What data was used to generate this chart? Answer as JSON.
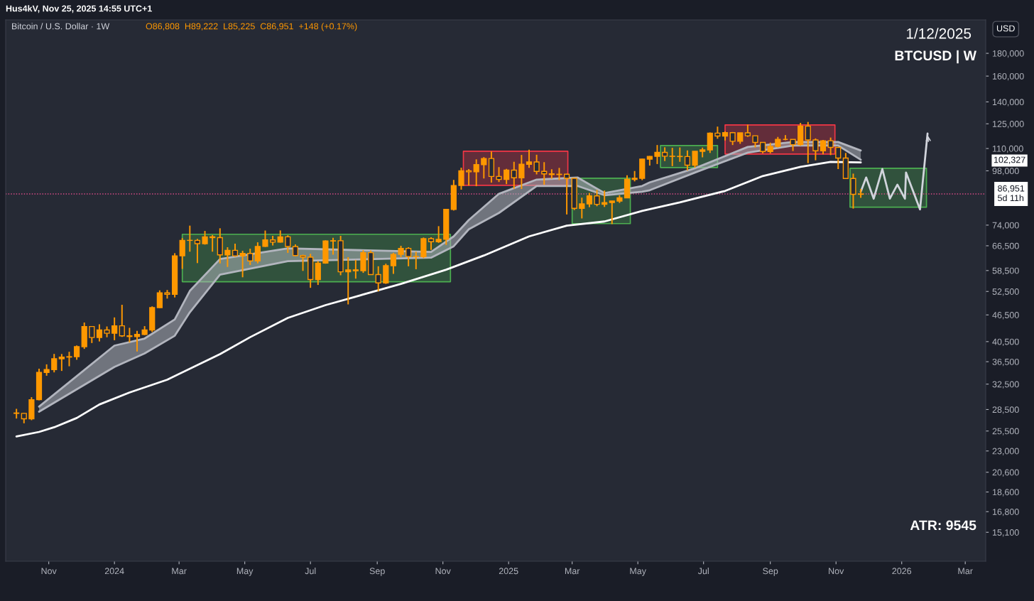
{
  "chart_data": {
    "type": "candlestick",
    "title": "Bitcoin / U.S. Dollar · 1W",
    "subtitle": "O86,808  H89,222  L85,225  C86,951  +148 (+0.17%)",
    "annotations": [
      "Hus4kV, Nov 25, 2025 14:55 UTC+1",
      "1/12/2025",
      "BTCUSD | W",
      "ATR: 9545",
      "USD",
      "102,327"
    ],
    "log": true,
    "xlim": [
      "2023-09-22",
      "2026-03-20"
    ],
    "xticks": [
      {
        "value": "2023-11-01",
        "label": "Nov"
      },
      {
        "value": "2024-01-01",
        "label": "2024"
      },
      {
        "value": "2024-03-01",
        "label": "Mar"
      },
      {
        "value": "2024-05-01",
        "label": "May"
      },
      {
        "value": "2024-07-01",
        "label": "Jul"
      },
      {
        "value": "2024-09-01",
        "label": "Sep"
      },
      {
        "value": "2024-11-01",
        "label": "Nov"
      },
      {
        "value": "2025-01-01",
        "label": "2025"
      },
      {
        "value": "2025-03-01",
        "label": "Mar"
      },
      {
        "value": "2025-05-01",
        "label": "May"
      },
      {
        "value": "2025-07-01",
        "label": "Jul"
      },
      {
        "value": "2025-09-01",
        "label": "Sep"
      },
      {
        "value": "2025-11-01",
        "label": "Nov"
      },
      {
        "value": "2026-01-01",
        "label": "2026"
      },
      {
        "value": "2026-03-01",
        "label": "Mar"
      }
    ],
    "ylim": [
      13000,
      214000
    ],
    "yticks": [
      {
        "value": 15100,
        "label": "15,100"
      },
      {
        "value": 16800,
        "label": "16,800"
      },
      {
        "value": 18600,
        "label": "18,600"
      },
      {
        "value": 20600,
        "label": "20,600"
      },
      {
        "value": 23000,
        "label": "23,000"
      },
      {
        "value": 25500,
        "label": "25,500"
      },
      {
        "value": 28500,
        "label": "28,500"
      },
      {
        "value": 32500,
        "label": "32,500"
      },
      {
        "value": 36500,
        "label": "36,500"
      },
      {
        "value": 40500,
        "label": "40,500"
      },
      {
        "value": 46500,
        "label": "46,500"
      },
      {
        "value": 52500,
        "label": "52,500"
      },
      {
        "value": 58500,
        "label": "58,500"
      },
      {
        "value": 66500,
        "label": "66,500"
      },
      {
        "value": 74000,
        "label": "74,000"
      },
      {
        "value": 98000,
        "label": "98,000"
      },
      {
        "value": 110000,
        "label": "110,000"
      },
      {
        "value": 125000,
        "label": "125,000"
      },
      {
        "value": 140000,
        "label": "140,000"
      },
      {
        "value": 160000,
        "label": "160,000"
      },
      {
        "value": 180000,
        "label": "180,000"
      }
    ],
    "ref_lines": [
      {
        "axis": "y",
        "value": 86951,
        "label": "86,951\n5d 11h",
        "color": "#e04c8a",
        "line_style": "dotted"
      }
    ],
    "series": [
      {
        "type": "line",
        "color": "#b2b5be",
        "x": [
          "2023-10-23",
          "2024-01-01",
          "2024-01-29",
          "2024-02-26",
          "2024-03-11",
          "2024-04-08",
          "2024-06-10",
          "2024-10-21",
          "2024-11-11",
          "2024-11-25",
          "2024-12-23",
          "2025-01-27",
          "2025-03-06",
          "2025-03-31",
          "2025-05-05",
          "2025-05-12",
          "2025-06-23",
          "2025-08-11",
          "2025-09-22",
          "2025-11-03",
          "2025-11-24"
        ],
        "values": [
          28930,
          39670,
          41150,
          45440,
          52640,
          62090,
          65600,
          64410,
          69810,
          75960,
          87010,
          93650,
          94690,
          87350,
          90620,
          92290,
          99310,
          110870,
          113770,
          113770,
          108870
        ]
      },
      {
        "type": "line",
        "color": "#b2b5be",
        "x": [
          "2023-10-23",
          "2024-01-01",
          "2024-01-29",
          "2024-02-26",
          "2024-03-11",
          "2024-04-08",
          "2024-06-10",
          "2024-10-21",
          "2024-11-11",
          "2024-11-25",
          "2024-12-23",
          "2025-01-27",
          "2025-03-06",
          "2025-03-31",
          "2025-05-05",
          "2025-05-12",
          "2025-06-23",
          "2025-08-11",
          "2025-09-22",
          "2025-11-03",
          "2025-11-24"
        ],
        "values": [
          28190,
          35530,
          38100,
          41750,
          47140,
          57280,
          61400,
          62540,
          66330,
          72410,
          78810,
          90620,
          90620,
          86380,
          87990,
          88640,
          97140,
          107670,
          111700,
          111700,
          103780
        ]
      },
      {
        "type": "line",
        "color": "#ffffff",
        "x": [
          "2023-10-02",
          "2023-10-23",
          "2023-11-06",
          "2023-11-27",
          "2023-12-18",
          "2024-01-15",
          "2024-02-19",
          "2024-04-08",
          "2024-05-06",
          "2024-06-10",
          "2024-07-15",
          "2024-08-12",
          "2024-09-23",
          "2024-11-04",
          "2024-12-09",
          "2025-01-20",
          "2025-02-24",
          "2025-03-31",
          "2025-05-05",
          "2025-06-09",
          "2025-07-21",
          "2025-08-25",
          "2025-09-29",
          "2025-10-27",
          "2025-11-24"
        ],
        "values": [
          24790,
          25380,
          26000,
          27280,
          29250,
          31130,
          33250,
          37960,
          41440,
          45780,
          48910,
          51110,
          54600,
          58750,
          63230,
          69810,
          73780,
          75410,
          79670,
          83260,
          88310,
          95390,
          100050,
          102660,
          102330
        ]
      },
      {
        "type": "area",
        "color": "#4caf50",
        "x": [
          "2024-03-04",
          "2024-03-04",
          "2024-11-08",
          "2024-11-08",
          "2024-03-04"
        ],
        "values": [
          55200,
          70590,
          70590,
          55200,
          55200
        ]
      },
      {
        "type": "area",
        "color": "#f23645",
        "x": [
          "2024-11-20",
          "2024-11-20",
          "2025-02-25",
          "2025-02-25",
          "2024-11-20"
        ],
        "values": [
          90930,
          108460,
          108460,
          90930,
          90930
        ]
      },
      {
        "type": "area",
        "color": "#4caf50",
        "x": [
          "2025-03-01",
          "2025-03-01",
          "2025-04-24",
          "2025-04-24",
          "2025-03-01"
        ],
        "values": [
          74580,
          94340,
          94340,
          74580,
          74580
        ]
      },
      {
        "type": "area",
        "color": "#4caf50",
        "x": [
          "2025-05-22",
          "2025-05-22",
          "2025-07-14",
          "2025-07-14",
          "2025-05-22"
        ],
        "values": [
          99680,
          111700,
          111700,
          99680,
          99680
        ]
      },
      {
        "type": "area",
        "color": "#f23645",
        "x": [
          "2025-07-21",
          "2025-07-21",
          "2025-10-31",
          "2025-10-31",
          "2025-07-21"
        ],
        "values": [
          106880,
          124290,
          124290,
          106880,
          106880
        ]
      },
      {
        "type": "area",
        "color": "#4caf50",
        "x": [
          "2025-11-14",
          "2025-11-14",
          "2026-01-24",
          "2026-01-24",
          "2025-11-14"
        ],
        "values": [
          81180,
          99310,
          99310,
          81180,
          81180
        ]
      },
      {
        "type": "line",
        "color": "#d1d4dc",
        "x": [
          "2025-11-24",
          "2025-11-29",
          "2025-12-06",
          "2025-12-14",
          "2025-12-21",
          "2025-12-28",
          "2026-01-04",
          "2026-01-05",
          "2026-01-18",
          "2026-01-25"
        ],
        "values": [
          87990,
          94690,
          84840,
          98950,
          84840,
          91260,
          84840,
          97140,
          80260,
          118900
        ]
      },
      {
        "color": "#ff9800",
        "x": [
          "2023-10-02",
          "2023-10-09",
          "2023-10-16",
          "2023-10-23",
          "2023-10-30",
          "2023-11-06",
          "2023-11-13",
          "2023-11-20",
          "2023-11-27",
          "2023-12-04",
          "2023-12-11",
          "2023-12-18",
          "2023-12-25",
          "2024-01-01",
          "2024-01-08",
          "2024-01-15",
          "2024-01-22",
          "2024-01-29",
          "2024-02-05",
          "2024-02-12",
          "2024-02-19",
          "2024-02-26",
          "2024-03-04",
          "2024-03-11",
          "2024-03-18",
          "2024-03-25",
          "2024-04-01",
          "2024-04-08",
          "2024-04-15",
          "2024-04-22",
          "2024-04-29",
          "2024-05-06",
          "2024-05-13",
          "2024-05-20",
          "2024-05-27",
          "2024-06-03",
          "2024-06-10",
          "2024-06-17",
          "2024-06-24",
          "2024-07-01",
          "2024-07-08",
          "2024-07-15",
          "2024-07-22",
          "2024-07-29",
          "2024-08-05",
          "2024-08-12",
          "2024-08-19",
          "2024-08-26",
          "2024-09-02",
          "2024-09-09",
          "2024-09-16",
          "2024-09-23",
          "2024-09-30",
          "2024-10-07",
          "2024-10-14",
          "2024-10-21",
          "2024-10-28",
          "2024-11-04",
          "2024-11-11",
          "2024-11-18",
          "2024-11-25",
          "2024-12-02",
          "2024-12-09",
          "2024-12-16",
          "2024-12-23",
          "2024-12-30",
          "2025-01-06",
          "2025-01-13",
          "2025-01-20",
          "2025-01-27",
          "2025-02-03",
          "2025-02-10",
          "2025-02-17",
          "2025-02-24",
          "2025-03-03",
          "2025-03-10",
          "2025-03-17",
          "2025-03-24",
          "2025-03-31",
          "2025-04-07",
          "2025-04-14",
          "2025-04-21",
          "2025-04-28",
          "2025-05-05",
          "2025-05-12",
          "2025-05-19",
          "2025-05-26",
          "2025-06-02",
          "2025-06-09",
          "2025-06-16",
          "2025-06-23",
          "2025-06-30",
          "2025-07-07",
          "2025-07-14",
          "2025-07-21",
          "2025-07-28",
          "2025-08-04",
          "2025-08-11",
          "2025-08-18",
          "2025-08-25",
          "2025-09-01",
          "2025-09-08",
          "2025-09-15",
          "2025-09-22",
          "2025-09-29",
          "2025-10-06",
          "2025-10-13",
          "2025-10-20",
          "2025-10-27",
          "2025-11-03",
          "2025-11-10",
          "2025-11-17",
          "2025-11-24"
        ],
        "ohlc": [
          [
            27990,
            28600,
            27200,
            27940
          ],
          [
            27940,
            27990,
            26540,
            27160
          ],
          [
            27160,
            30380,
            26970,
            29990
          ],
          [
            29990,
            35200,
            29880,
            34530
          ],
          [
            34530,
            36000,
            33940,
            35040
          ],
          [
            35040,
            38000,
            34540,
            37060
          ],
          [
            37060,
            37980,
            34800,
            37380
          ],
          [
            37380,
            38420,
            35650,
            37460
          ],
          [
            37460,
            39700,
            36870,
            39460
          ],
          [
            39460,
            44700,
            39000,
            43780
          ],
          [
            43780,
            43800,
            40200,
            41360
          ],
          [
            41360,
            44300,
            40530,
            43000
          ],
          [
            43000,
            43800,
            41420,
            42280
          ],
          [
            42280,
            45900,
            40800,
            43950
          ],
          [
            43950,
            49000,
            41500,
            41730
          ],
          [
            41730,
            43500,
            40300,
            41580
          ],
          [
            41580,
            42800,
            38500,
            42030
          ],
          [
            42030,
            43880,
            41880,
            43000
          ],
          [
            43000,
            48600,
            42560,
            48300
          ],
          [
            48300,
            52800,
            48200,
            52130
          ],
          [
            52130,
            52900,
            50600,
            51730
          ],
          [
            51730,
            64000,
            50900,
            63130
          ],
          [
            63130,
            69200,
            59000,
            68380
          ],
          [
            68380,
            73800,
            64500,
            68390
          ],
          [
            68390,
            68900,
            60800,
            67210
          ],
          [
            67210,
            71800,
            66900,
            69650
          ],
          [
            69650,
            70300,
            64500,
            69360
          ],
          [
            69360,
            72800,
            60700,
            63450
          ],
          [
            63450,
            66000,
            59600,
            64940
          ],
          [
            64940,
            67200,
            62800,
            63120
          ],
          [
            63120,
            64800,
            56500,
            63900
          ],
          [
            63900,
            65500,
            60200,
            61480
          ],
          [
            61480,
            67700,
            60700,
            66270
          ],
          [
            66270,
            71950,
            66100,
            68520
          ],
          [
            68520,
            70000,
            66600,
            67760
          ],
          [
            67760,
            72000,
            67600,
            69640
          ],
          [
            69640,
            70200,
            64100,
            66230
          ],
          [
            66230,
            66970,
            63000,
            63210
          ],
          [
            63210,
            63500,
            58400,
            62680
          ],
          [
            62680,
            63800,
            53500,
            55850
          ],
          [
            55850,
            61400,
            54300,
            60800
          ],
          [
            60800,
            68400,
            60600,
            68160
          ],
          [
            68160,
            69300,
            63500,
            68250
          ],
          [
            68250,
            70000,
            57100,
            58120
          ],
          [
            58120,
            62700,
            49100,
            58710
          ],
          [
            58710,
            61800,
            56100,
            58430
          ],
          [
            58430,
            65000,
            57800,
            64180
          ],
          [
            64180,
            64900,
            57200,
            57290
          ],
          [
            57290,
            59800,
            52500,
            54870
          ],
          [
            54870,
            60600,
            54600,
            59990
          ],
          [
            59990,
            64100,
            57500,
            63600
          ],
          [
            63600,
            66500,
            62700,
            65620
          ],
          [
            65620,
            66000,
            59800,
            62880
          ],
          [
            62880,
            64500,
            58900,
            62850
          ],
          [
            62850,
            69400,
            62400,
            68990
          ],
          [
            68990,
            69500,
            65100,
            67920
          ],
          [
            67920,
            73600,
            67500,
            68770
          ],
          [
            68770,
            80400,
            66800,
            80280
          ],
          [
            80280,
            93500,
            79800,
            90840
          ],
          [
            90840,
            99600,
            88900,
            98050
          ],
          [
            98050,
            98900,
            90800,
            97490
          ],
          [
            97490,
            104000,
            90500,
            101170
          ],
          [
            101170,
            105200,
            94200,
            104470
          ],
          [
            104470,
            108300,
            92200,
            95200
          ],
          [
            95200,
            99900,
            92500,
            93700
          ],
          [
            93700,
            99000,
            91500,
            98340
          ],
          [
            98340,
            102700,
            89300,
            94520
          ],
          [
            94520,
            106400,
            89200,
            101370
          ],
          [
            101370,
            109300,
            99500,
            102620
          ],
          [
            102620,
            106500,
            96200,
            97700
          ],
          [
            97700,
            102500,
            91200,
            96490
          ],
          [
            96490,
            98800,
            94100,
            96130
          ],
          [
            96130,
            99500,
            93400,
            96280
          ],
          [
            96280,
            96500,
            78200,
            94270
          ],
          [
            94270,
            94400,
            80000,
            80700
          ],
          [
            80700,
            85300,
            76600,
            82600
          ],
          [
            82600,
            87400,
            81200,
            86080
          ],
          [
            86080,
            88800,
            81600,
            82400
          ],
          [
            82400,
            88500,
            81300,
            83150
          ],
          [
            83150,
            83900,
            74400,
            83800
          ],
          [
            83800,
            86400,
            83000,
            85200
          ],
          [
            85200,
            95800,
            85200,
            93750
          ],
          [
            93750,
            97900,
            92800,
            94300
          ],
          [
            94300,
            104300,
            93400,
            104100
          ],
          [
            104100,
            105800,
            100700,
            105600
          ],
          [
            105600,
            112000,
            101500,
            107800
          ],
          [
            107800,
            110700,
            103100,
            105700
          ],
          [
            105700,
            110400,
            100400,
            105600
          ],
          [
            105600,
            110600,
            102700,
            105500
          ],
          [
            105500,
            108900,
            98200,
            100900
          ],
          [
            100900,
            108500,
            99600,
            108400
          ],
          [
            108400,
            110500,
            105100,
            109200
          ],
          [
            109200,
            119500,
            107500,
            119100
          ],
          [
            119100,
            123200,
            115700,
            117300
          ],
          [
            117300,
            120200,
            114700,
            119400
          ],
          [
            119400,
            119800,
            112000,
            114200
          ],
          [
            114200,
            119300,
            112700,
            119300
          ],
          [
            119300,
            124500,
            116800,
            117500
          ],
          [
            117500,
            117600,
            110600,
            113500
          ],
          [
            113500,
            113700,
            107300,
            108300
          ],
          [
            108300,
            113400,
            107300,
            111200
          ],
          [
            111200,
            116800,
            110600,
            115300
          ],
          [
            115300,
            117900,
            114800,
            115300
          ],
          [
            115300,
            115400,
            108600,
            112200
          ],
          [
            112200,
            125600,
            111600,
            123500
          ],
          [
            123500,
            126200,
            102000,
            115000
          ],
          [
            115000,
            115900,
            103500,
            108700
          ],
          [
            108700,
            115000,
            106700,
            114500
          ],
          [
            114500,
            116400,
            106300,
            110600
          ],
          [
            110600,
            110700,
            98900,
            104700
          ],
          [
            104700,
            107500,
            94000,
            94200
          ],
          [
            94200,
            96600,
            80600,
            86800
          ],
          [
            86808,
            89222,
            85225,
            86951
          ]
        ]
      }
    ]
  }
}
